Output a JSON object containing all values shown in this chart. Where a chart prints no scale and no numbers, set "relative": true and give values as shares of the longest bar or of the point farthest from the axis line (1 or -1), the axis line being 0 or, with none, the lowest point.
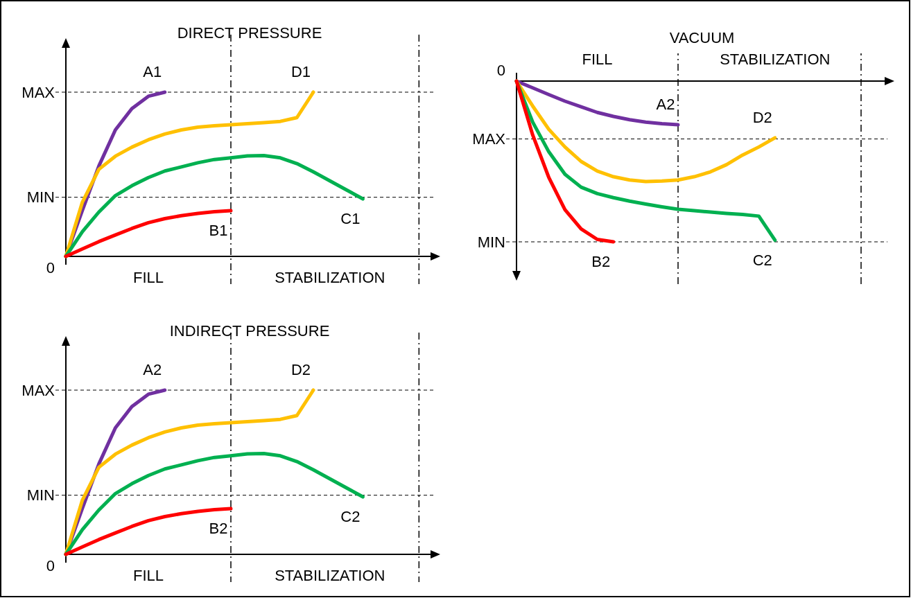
{
  "chart_data": [
    {
      "type": "line",
      "title": "DIRECT PRESSURE",
      "relative": true,
      "legend": false,
      "marker": "none",
      "line_style": "solid",
      "categories": [
        null,
        null,
        null,
        null,
        null,
        "FILL",
        null,
        null,
        null,
        null,
        null,
        null,
        null,
        null,
        null,
        null,
        "STABILIZATION",
        null,
        null,
        null,
        null,
        null,
        null
      ],
      "annotations": [
        "0"
      ],
      "ref_lines": [
        {
          "axis": "y",
          "value": 0.36,
          "label": "MIN",
          "line_style": "dashed"
        },
        {
          "axis": "y",
          "value": 1,
          "label": "MAX",
          "line_style": "dashed"
        }
      ],
      "series": [
        {
          "name": "A1",
          "color": "#7030a0",
          "values": [
            0,
            0.28,
            0.55,
            0.77,
            0.9,
            0.975,
            1.0,
            null,
            null,
            null,
            null,
            null,
            null,
            null,
            null,
            null,
            null,
            null,
            null,
            null,
            null,
            null,
            null
          ]
        },
        {
          "name": "D1",
          "color": "#ffc000",
          "values": [
            0,
            0.33,
            0.53,
            0.61,
            0.665,
            0.71,
            0.745,
            0.77,
            0.787,
            0.795,
            0.802,
            0.808,
            0.814,
            0.822,
            0.845,
            1.0,
            null,
            null,
            null,
            null,
            null,
            null,
            null
          ]
        },
        {
          "name": "C1",
          "color": "#00b050",
          "values": [
            0,
            0.15,
            0.27,
            0.37,
            0.43,
            0.48,
            0.52,
            0.545,
            0.57,
            0.59,
            0.6,
            0.612,
            0.614,
            0.6,
            0.565,
            0.515,
            0.46,
            0.405,
            0.35,
            null,
            null,
            null,
            null
          ]
        },
        {
          "name": "B1",
          "color": "#ff0000",
          "values": [
            0,
            0.045,
            0.09,
            0.13,
            0.17,
            0.205,
            0.23,
            0.248,
            0.262,
            0.272,
            0.278,
            null,
            null,
            null,
            null,
            null,
            null,
            null,
            null,
            null,
            null,
            null,
            null
          ]
        }
      ]
    },
    {
      "type": "line",
      "title": "VACUUM",
      "relative": true,
      "legend": false,
      "marker": "none",
      "line_style": "solid",
      "categories": [
        null,
        null,
        null,
        null,
        null,
        "FILL",
        null,
        null,
        null,
        null,
        null,
        null,
        null,
        null,
        null,
        null,
        "STABILIZATION",
        null,
        null,
        null,
        null,
        null,
        null
      ],
      "annotations": [
        "0"
      ],
      "ref_lines": [
        {
          "axis": "y",
          "value": -0.36,
          "label": "MAX",
          "line_style": "dashed"
        },
        {
          "axis": "y",
          "value": -1,
          "label": "MIN",
          "line_style": "dashed"
        }
      ],
      "series": [
        {
          "name": "A2",
          "color": "#7030a0",
          "values": [
            0,
            -0.042,
            -0.084,
            -0.125,
            -0.16,
            -0.195,
            -0.22,
            -0.24,
            -0.255,
            -0.265,
            -0.272,
            null,
            null,
            null,
            null,
            null,
            null,
            null,
            null,
            null,
            null,
            null,
            null
          ]
        },
        {
          "name": "D2",
          "color": "#ffc000",
          "values": [
            0,
            -0.155,
            -0.3,
            -0.41,
            -0.5,
            -0.56,
            -0.595,
            -0.615,
            -0.625,
            -0.622,
            -0.615,
            -0.595,
            -0.565,
            -0.52,
            -0.46,
            -0.41,
            -0.353,
            null,
            null,
            null,
            null,
            null,
            null
          ]
        },
        {
          "name": "C2",
          "color": "#00b050",
          "values": [
            0,
            -0.255,
            -0.44,
            -0.58,
            -0.66,
            -0.7,
            -0.725,
            -0.747,
            -0.765,
            -0.782,
            -0.797,
            -0.806,
            -0.815,
            -0.823,
            -0.83,
            -0.84,
            -0.99,
            null,
            null,
            null,
            null,
            null,
            null
          ]
        },
        {
          "name": "B2",
          "color": "#ff0000",
          "values": [
            0,
            -0.335,
            -0.6,
            -0.8,
            -0.92,
            -0.985,
            -1.0,
            null,
            null,
            null,
            null,
            null,
            null,
            null,
            null,
            null,
            null,
            null,
            null,
            null,
            null,
            null,
            null
          ]
        }
      ]
    },
    {
      "type": "line",
      "title": "INDIRECT PRESSURE",
      "relative": true,
      "legend": false,
      "marker": "none",
      "line_style": "solid",
      "categories": [
        null,
        null,
        null,
        null,
        null,
        "FILL",
        null,
        null,
        null,
        null,
        null,
        null,
        null,
        null,
        null,
        null,
        "STABILIZATION",
        null,
        null,
        null,
        null,
        null,
        null
      ],
      "annotations": [
        "0"
      ],
      "ref_lines": [
        {
          "axis": "y",
          "value": 0.36,
          "label": "MIN",
          "line_style": "dashed"
        },
        {
          "axis": "y",
          "value": 1,
          "label": "MAX",
          "line_style": "dashed"
        }
      ],
      "series": [
        {
          "name": "A2",
          "color": "#7030a0",
          "values": [
            0,
            0.28,
            0.55,
            0.77,
            0.9,
            0.975,
            1.0,
            null,
            null,
            null,
            null,
            null,
            null,
            null,
            null,
            null,
            null,
            null,
            null,
            null,
            null,
            null,
            null
          ]
        },
        {
          "name": "D2",
          "color": "#ffc000",
          "values": [
            0,
            0.33,
            0.53,
            0.61,
            0.665,
            0.71,
            0.745,
            0.77,
            0.787,
            0.795,
            0.802,
            0.808,
            0.814,
            0.822,
            0.845,
            1.0,
            null,
            null,
            null,
            null,
            null,
            null,
            null
          ]
        },
        {
          "name": "C2",
          "color": "#00b050",
          "values": [
            0,
            0.15,
            0.27,
            0.37,
            0.43,
            0.48,
            0.52,
            0.545,
            0.57,
            0.59,
            0.6,
            0.612,
            0.614,
            0.6,
            0.565,
            0.515,
            0.46,
            0.405,
            0.35,
            null,
            null,
            null,
            null
          ]
        },
        {
          "name": "B2",
          "color": "#ff0000",
          "values": [
            0,
            0.045,
            0.09,
            0.13,
            0.17,
            0.205,
            0.23,
            0.248,
            0.262,
            0.272,
            0.278,
            null,
            null,
            null,
            null,
            null,
            null,
            null,
            null,
            null,
            null,
            null,
            null
          ]
        }
      ]
    }
  ]
}
